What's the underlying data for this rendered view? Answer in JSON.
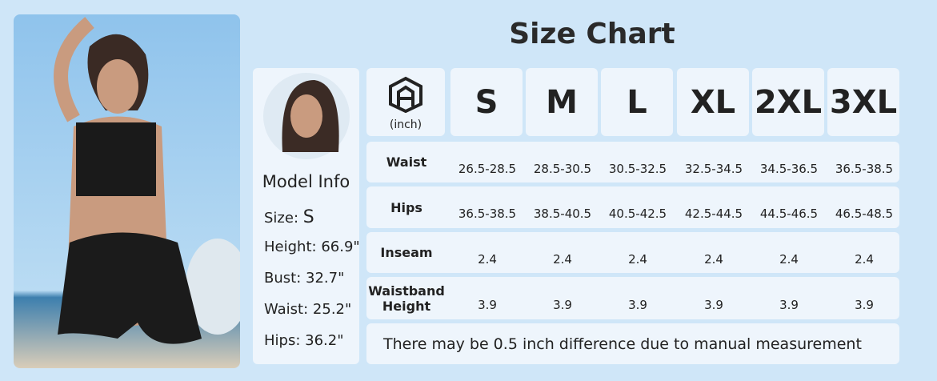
{
  "title": "Size Chart",
  "model_info": {
    "heading": "Model Info",
    "items": [
      {
        "label": "Size:",
        "value": "S"
      },
      {
        "label": "Height:",
        "value": "66.9\""
      },
      {
        "label": "Bust:",
        "value": "32.7\""
      },
      {
        "label": "Waist:",
        "value": "25.2\""
      },
      {
        "label": "Hips:",
        "value": "36.2\""
      }
    ]
  },
  "table": {
    "unit": "(inch)",
    "sizes": [
      "S",
      "M",
      "L",
      "XL",
      "2XL",
      "3XL"
    ],
    "rows": [
      {
        "label": "Waist",
        "values": [
          "26.5-28.5",
          "28.5-30.5",
          "30.5-32.5",
          "32.5-34.5",
          "34.5-36.5",
          "36.5-38.5"
        ]
      },
      {
        "label": "Hips",
        "values": [
          "36.5-38.5",
          "38.5-40.5",
          "40.5-42.5",
          "42.5-44.5",
          "44.5-46.5",
          "46.5-48.5"
        ]
      },
      {
        "label": "Inseam",
        "values": [
          "2.4",
          "2.4",
          "2.4",
          "2.4",
          "2.4",
          "2.4"
        ]
      },
      {
        "label": "Waistband Height",
        "values": [
          "3.9",
          "3.9",
          "3.9",
          "3.9",
          "3.9",
          "3.9"
        ]
      }
    ],
    "note": "There may be 0.5 inch difference due to manual measurement"
  }
}
